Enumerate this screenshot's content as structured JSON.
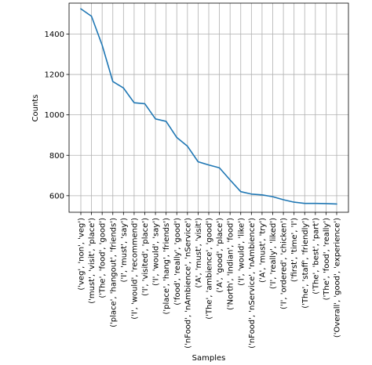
{
  "chart_data": {
    "type": "line",
    "title": "",
    "xlabel": "Samples",
    "ylabel": "Counts",
    "categories": [
      "('veg', 'non', 'veg')",
      "('must', 'visit', 'place')",
      "('The', 'food', 'good')",
      "('place', 'hangout', 'friends')",
      "('I', 'must', 'say')",
      "('I', 'would', 'recommend')",
      "('I', 'visited', 'place')",
      "('I', 'would', 'say')",
      "('place', 'hang', 'friends')",
      "('food', 'really', 'good')",
      "('nFood', 'nAmbience', 'nService')",
      "('A', 'must', 'visit')",
      "('The', 'ambience', 'good')",
      "('A', 'good', 'place')",
      "('North', 'Indian', 'food')",
      "('I', 'would', 'like')",
      "('nFood', 'nService', 'nAmbience')",
      "('A', 'must', 'try')",
      "('I', 'really', 'liked')",
      "('I', 'ordered', 'chicken')",
      "('first', 'time', 'I')",
      "('The', 'staff', 'friendly')",
      "('The', 'best', 'part')",
      "('The', 'food', 'really')",
      "('Overall', 'good', 'experience')"
    ],
    "series": [
      {
        "values": [
          1525,
          1488,
          1345,
          1165,
          1133,
          1060,
          1055,
          980,
          968,
          888,
          845,
          768,
          752,
          738,
          678,
          620,
          608,
          604,
          595,
          580,
          568,
          562,
          562,
          561,
          559
        ]
      }
    ],
    "ylim": [
      518,
      1553
    ],
    "yticks": [
      600,
      800,
      1000,
      1200,
      1400
    ],
    "grid": true,
    "colors": {
      "line": "#1f77b4"
    }
  }
}
